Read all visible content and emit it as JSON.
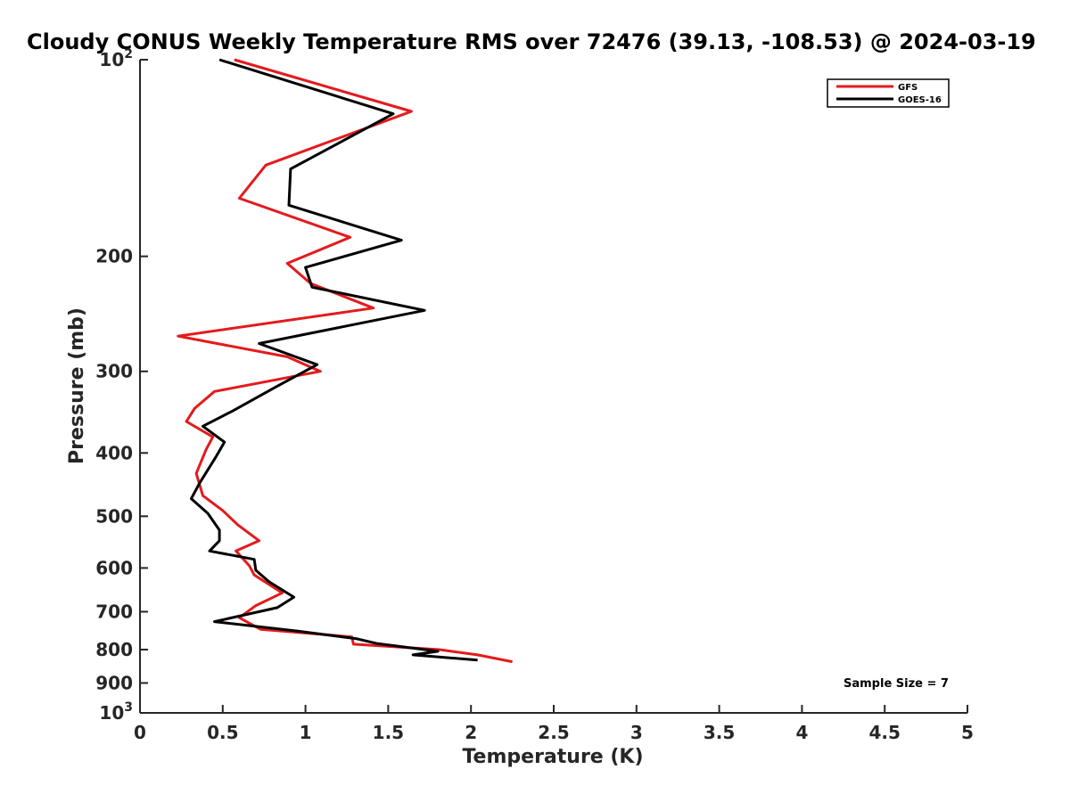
{
  "chart_data": {
    "type": "line",
    "title": "Cloudy CONUS Weekly Temperature RMS over 72476 (39.13, -108.53) @ 2024-03-19",
    "xlabel": "Temperature (K)",
    "ylabel": "Pressure (mb)",
    "xlim": [
      0,
      5
    ],
    "ylim": [
      100,
      1000
    ],
    "yscale": "log",
    "y_reversed": true,
    "grid": false,
    "legend_position": "top-right",
    "x_ticks": [
      0,
      0.5,
      1,
      1.5,
      2,
      2.5,
      3,
      3.5,
      4,
      4.5,
      5
    ],
    "x_tick_labels": [
      "0",
      "0.5",
      "1",
      "1.5",
      "2",
      "2.5",
      "3",
      "3.5",
      "4",
      "4.5",
      "5"
    ],
    "y_ticks": [
      100,
      200,
      300,
      400,
      500,
      600,
      700,
      800,
      900,
      1000
    ],
    "y_tick_labels": [
      {
        "base": "10",
        "exp": "2"
      },
      {
        "base": "200",
        "exp": ""
      },
      {
        "base": "300",
        "exp": ""
      },
      {
        "base": "400",
        "exp": ""
      },
      {
        "base": "500",
        "exp": ""
      },
      {
        "base": "600",
        "exp": ""
      },
      {
        "base": "700",
        "exp": ""
      },
      {
        "base": "800",
        "exp": ""
      },
      {
        "base": "900",
        "exp": ""
      },
      {
        "base": "10",
        "exp": "3"
      }
    ],
    "annotation": "Sample Size = 7",
    "series": [
      {
        "name": "GFS",
        "color": "#e41a1c",
        "points": [
          [
            0.57,
            100
          ],
          [
            1.64,
            120
          ],
          [
            0.76,
            145
          ],
          [
            0.6,
            163
          ],
          [
            1.27,
            187
          ],
          [
            0.89,
            205
          ],
          [
            1.03,
            220
          ],
          [
            1.41,
            240
          ],
          [
            0.23,
            265
          ],
          [
            0.89,
            285
          ],
          [
            1.09,
            300
          ],
          [
            0.45,
            322
          ],
          [
            0.33,
            342
          ],
          [
            0.28,
            358
          ],
          [
            0.44,
            378
          ],
          [
            0.4,
            395
          ],
          [
            0.34,
            430
          ],
          [
            0.38,
            465
          ],
          [
            0.5,
            490
          ],
          [
            0.59,
            515
          ],
          [
            0.72,
            545
          ],
          [
            0.58,
            565
          ],
          [
            0.66,
            595
          ],
          [
            0.69,
            615
          ],
          [
            0.86,
            655
          ],
          [
            0.7,
            685
          ],
          [
            0.6,
            715
          ],
          [
            0.73,
            745
          ],
          [
            1.28,
            765
          ],
          [
            1.29,
            785
          ],
          [
            1.81,
            800
          ],
          [
            2.04,
            815
          ],
          [
            2.25,
            835
          ]
        ]
      },
      {
        "name": "GOES-16",
        "color": "#000000",
        "points": [
          [
            0.48,
            100
          ],
          [
            1.53,
            121
          ],
          [
            0.91,
            147
          ],
          [
            0.9,
            167
          ],
          [
            1.58,
            189
          ],
          [
            1.0,
            208
          ],
          [
            1.04,
            223
          ],
          [
            1.72,
            242
          ],
          [
            0.72,
            272
          ],
          [
            1.07,
            293
          ],
          [
            0.82,
            317
          ],
          [
            0.56,
            345
          ],
          [
            0.38,
            364
          ],
          [
            0.51,
            385
          ],
          [
            0.46,
            405
          ],
          [
            0.36,
            445
          ],
          [
            0.31,
            470
          ],
          [
            0.41,
            495
          ],
          [
            0.48,
            525
          ],
          [
            0.48,
            545
          ],
          [
            0.42,
            565
          ],
          [
            0.69,
            582
          ],
          [
            0.7,
            605
          ],
          [
            0.78,
            630
          ],
          [
            0.93,
            665
          ],
          [
            0.83,
            690
          ],
          [
            0.45,
            725
          ],
          [
            0.96,
            750
          ],
          [
            1.31,
            770
          ],
          [
            1.43,
            783
          ],
          [
            1.8,
            805
          ],
          [
            1.65,
            815
          ],
          [
            2.04,
            830
          ]
        ]
      }
    ]
  }
}
